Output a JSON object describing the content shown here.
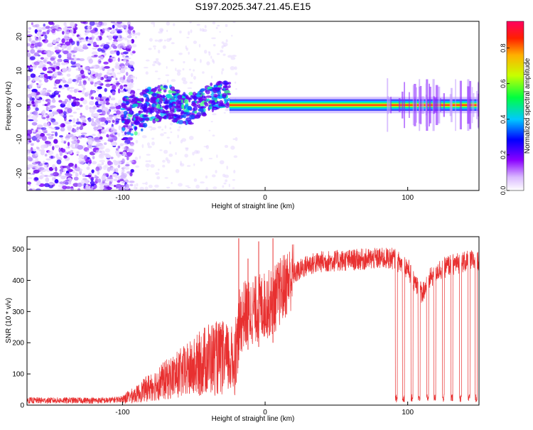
{
  "title": "S197.2025.347.21.45.E15",
  "colors": {
    "line": "#e83030",
    "axis": "#000000",
    "background": "#ffffff"
  },
  "chart_data": [
    {
      "type": "heatmap",
      "xlabel": "Height of straight line (km)",
      "ylabel": "Frequency (Hz)",
      "xlim": [
        -167,
        150
      ],
      "ylim": [
        -25,
        24.5
      ],
      "xticks": [
        -100,
        0,
        100
      ],
      "xtick_labels": [
        "-100",
        "0",
        "100"
      ],
      "yticks": [
        -20,
        -10,
        0,
        10,
        20
      ],
      "ytick_labels": [
        "-20",
        "-10",
        "0",
        "10",
        "20"
      ],
      "colorbar": {
        "label": "Normalized spectral amplitude",
        "range": [
          0,
          0.95
        ],
        "ticks": [
          0.0,
          0.2,
          0.4,
          0.6,
          0.8
        ],
        "tick_labels": [
          "0.0",
          "0.2",
          "0.4",
          "0.6",
          "0.8"
        ],
        "colormap": "rainbow"
      },
      "description_features": {
        "noise_region": [
          -167,
          -100
        ],
        "drift_region": [
          -100,
          -25
        ],
        "carrier_region": [
          -25,
          150
        ],
        "carrier_frequency_hz": 0
      }
    },
    {
      "type": "line",
      "xlabel": "Height of straight line (km)",
      "ylabel": "SNR (10 * v/v)",
      "xlim": [
        -167,
        150
      ],
      "ylim": [
        0,
        540
      ],
      "xticks": [
        -100,
        0,
        100
      ],
      "xtick_labels": [
        "-100",
        "0",
        "100"
      ],
      "yticks": [
        0,
        100,
        200,
        300,
        400,
        500
      ],
      "ytick_labels": [
        "0",
        "100",
        "200",
        "300",
        "400",
        "500"
      ],
      "envelope": [
        [
          -167,
          15
        ],
        [
          -110,
          15
        ],
        [
          -100,
          20
        ],
        [
          -90,
          35
        ],
        [
          -80,
          60
        ],
        [
          -70,
          80
        ],
        [
          -60,
          100
        ],
        [
          -50,
          120
        ],
        [
          -40,
          150
        ],
        [
          -30,
          150
        ],
        [
          -22,
          140
        ],
        [
          -20,
          180
        ],
        [
          -18,
          260
        ],
        [
          -15,
          290
        ],
        [
          -10,
          300
        ],
        [
          -5,
          310
        ],
        [
          0,
          320
        ],
        [
          5,
          330
        ],
        [
          10,
          360
        ],
        [
          20,
          420
        ],
        [
          30,
          450
        ],
        [
          40,
          460
        ],
        [
          60,
          465
        ],
        [
          80,
          470
        ],
        [
          90,
          470
        ],
        [
          100,
          440
        ],
        [
          105,
          390
        ],
        [
          110,
          360
        ],
        [
          115,
          400
        ],
        [
          120,
          430
        ],
        [
          130,
          450
        ],
        [
          140,
          460
        ],
        [
          150,
          465
        ]
      ],
      "spikes": [
        {
          "x": -18.5,
          "y": 535
        },
        {
          "x": -4.5,
          "y": 525
        },
        {
          "x": 5.5,
          "y": 535
        },
        {
          "x": -12,
          "y": 470
        }
      ],
      "dropouts": [
        92,
        97,
        103,
        108,
        114,
        119,
        125,
        131,
        137,
        143,
        148
      ]
    }
  ]
}
